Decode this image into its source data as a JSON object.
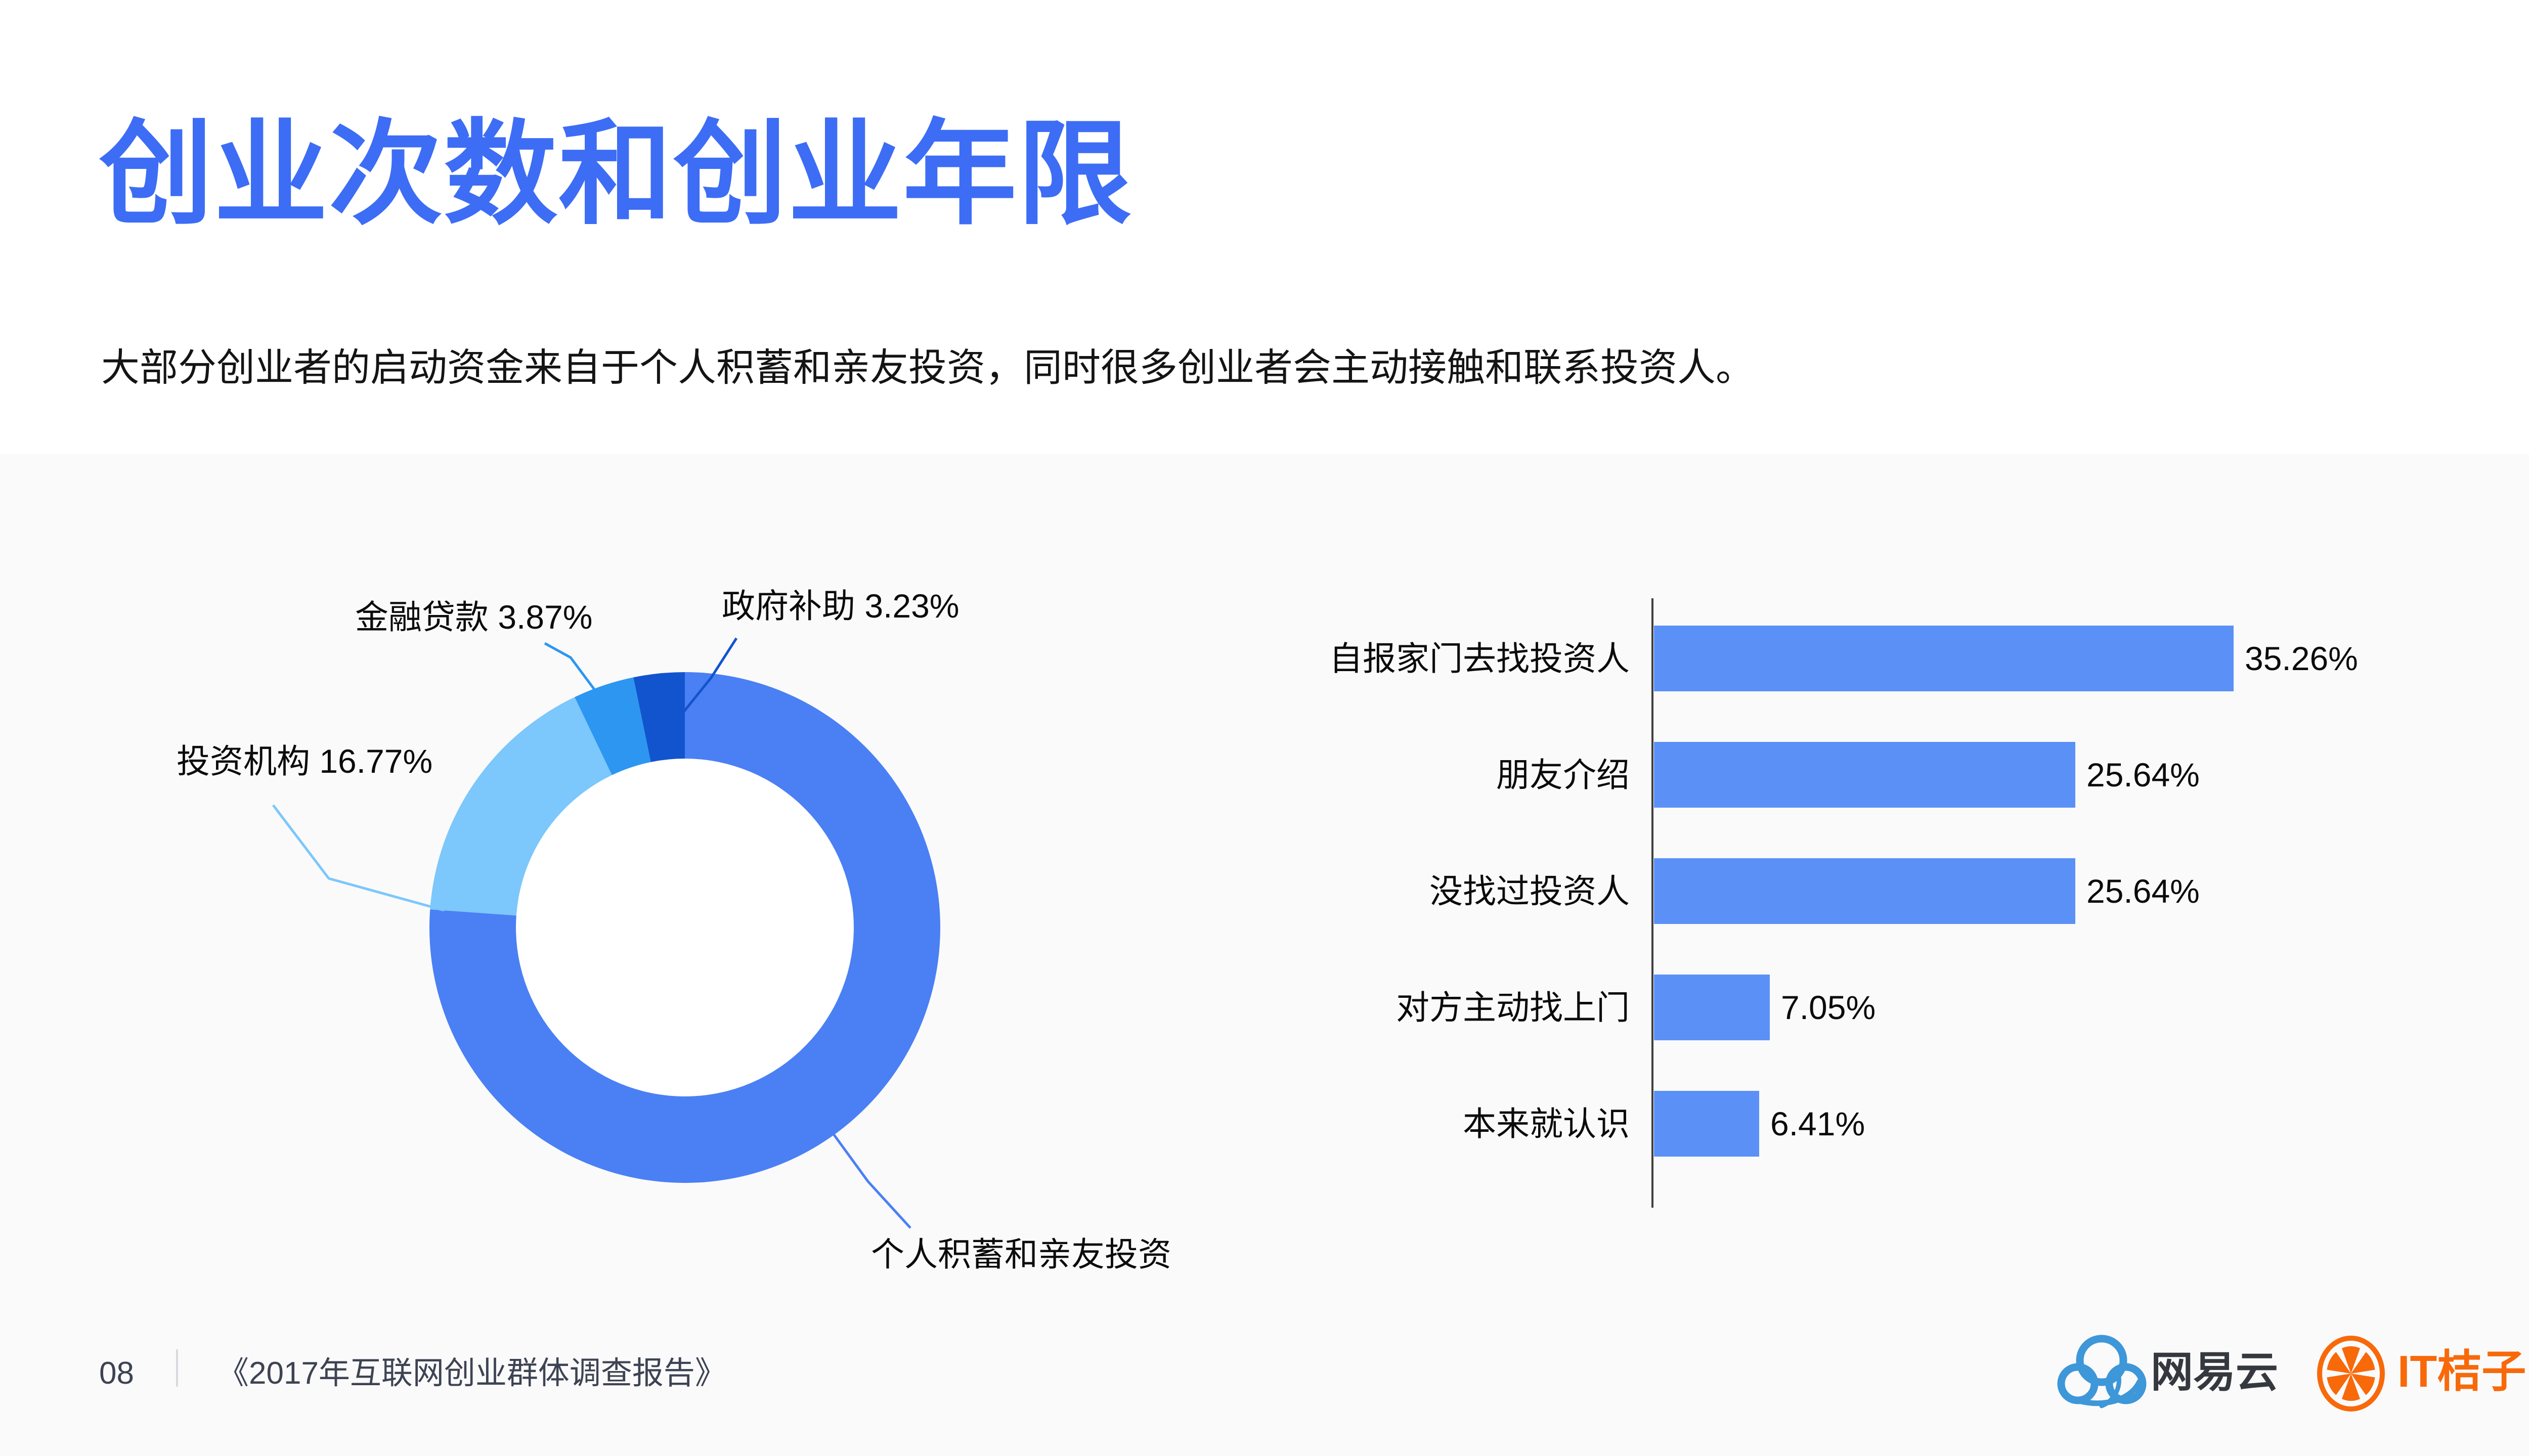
{
  "header": {
    "title": "创业次数和创业年限",
    "subtitle": "大部分创业者的启动资金来自于个人积蓄和亲友投资，同时很多创业者会主动接触和联系投资人。"
  },
  "chart_data": [
    {
      "type": "pie",
      "subtype": "donut",
      "direction": "clockwise",
      "start_angle": "12-oclock",
      "legend_position": "callout-labels",
      "slices": [
        {
          "label": "个人积蓄和亲友投资",
          "value": 76.13,
          "percent_shown": false,
          "color": "#4A80F4"
        },
        {
          "label": "投资机构",
          "value": 16.77,
          "percent_shown": true,
          "color": "#7CC7FB"
        },
        {
          "label": "金融贷款",
          "value": 3.87,
          "percent_shown": true,
          "color": "#2D96F1"
        },
        {
          "label": "政府补助",
          "value": 3.23,
          "percent_shown": true,
          "color": "#1254CE"
        }
      ]
    },
    {
      "type": "bar",
      "orientation": "horizontal",
      "categories": [
        "自报家门去找投资人",
        "朋友介绍",
        "没找过投资人",
        "对方主动找上门",
        "本来就认识"
      ],
      "values": [
        35.26,
        25.64,
        25.64,
        7.05,
        6.41
      ],
      "value_suffix": "%",
      "bar_color": "#5B90F7",
      "xlim": [
        0,
        36
      ],
      "grid": false,
      "axis_line": true
    }
  ],
  "footer": {
    "page_number": "08",
    "source": "《2017年互联网创业群体调查报告》"
  },
  "logos": {
    "netease": {
      "label": "网易云"
    },
    "itjuzi": {
      "label": "IT桔子"
    }
  },
  "colors": {
    "title_accent": "#3D6DF5",
    "lower_background": "#FAFAFB",
    "bar_blue": "#5B90F7",
    "donut_main_blue": "#4A80F4",
    "donut_sky_blue": "#7CC7FB",
    "donut_dodger_blue": "#2D96F1",
    "donut_dark_blue": "#1254CE",
    "footer_text": "#3D4352",
    "netease_blue": "#3D97D8",
    "itjuzi_orange": "#F8690A"
  }
}
